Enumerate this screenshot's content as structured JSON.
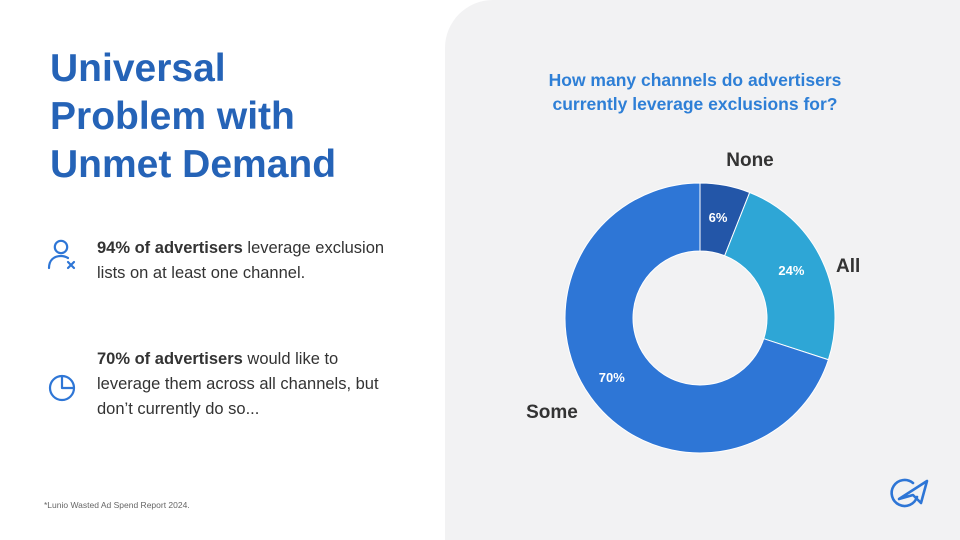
{
  "heading": {
    "lines": [
      "Universal",
      "Problem with",
      "Unmet Demand"
    ]
  },
  "points": [
    {
      "icon": "user-x-icon",
      "bold": "94% of advertisers",
      "rest": " leverage exclusion lists on at least one channel."
    },
    {
      "icon": "pie-chart-icon",
      "bold": "70% of advertisers",
      "rest": " would like to leverage them across all channels, but don’t currently do so..."
    }
  ],
  "footnote": "*Lunio Wasted Ad Spend Report 2024.",
  "colors": {
    "title": "#2563b7",
    "chart_title": "#2e7fd6",
    "panel_bg": "#f2f2f3",
    "none": "#2356a8",
    "all": "#2ea6d6",
    "some": "#2e76d6"
  },
  "chart_data": {
    "type": "pie",
    "donut": true,
    "title": "How many channels do advertisers currently leverage exclusions for?",
    "title_lines": [
      "How many channels do advertisers",
      "currently leverage exclusions for?"
    ],
    "slices": [
      {
        "label": "None",
        "value": 6,
        "value_label": "6%",
        "color": "#2356a8"
      },
      {
        "label": "All",
        "value": 24,
        "value_label": "24%",
        "color": "#2ea6d6"
      },
      {
        "label": "Some",
        "value": 70,
        "value_label": "70%",
        "color": "#2e76d6"
      }
    ],
    "legend": "none"
  },
  "logo": "lunio-logo-icon"
}
